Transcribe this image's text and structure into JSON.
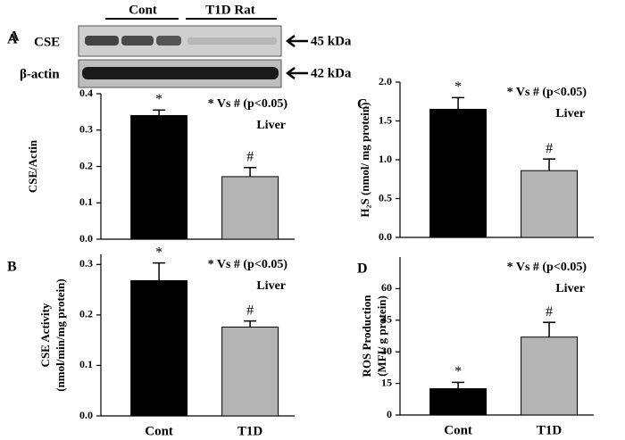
{
  "blot": {
    "panel": "A",
    "groups": [
      "Cont",
      "T1D Rat"
    ],
    "rows": [
      "CSE",
      "β-actin"
    ],
    "sizes": [
      "45 kDa",
      "42 kDa"
    ]
  },
  "chart_data": [
    {
      "type": "bar",
      "panel": "A",
      "ylabel": [
        "CSE/Actin"
      ],
      "categories": [
        null,
        null
      ],
      "values": [
        0.34,
        0.172
      ],
      "errors": [
        0.015,
        0.025
      ],
      "colors": [
        "#000000",
        "#b4b4b4"
      ],
      "markers": [
        "*",
        "#"
      ],
      "note": "* Vs # (p<0.05)",
      "tissue": "Liver",
      "ylim": [
        0,
        0.4
      ],
      "yticks": [
        {
          "value": 0,
          "label": "0.0"
        },
        0.1,
        0.2,
        0.3,
        0.4
      ]
    },
    {
      "type": "bar",
      "panel": "B",
      "ylabel": [
        "CSE Activity",
        "(nmol/min/mg protein)"
      ],
      "categories": [
        "Cont",
        "T1D"
      ],
      "values": [
        0.268,
        0.176
      ],
      "errors": [
        0.035,
        0.012
      ],
      "colors": [
        "#000000",
        "#b4b4b4"
      ],
      "markers": [
        "*",
        "#"
      ],
      "note": "* Vs # (p<0.05)",
      "tissue": "Liver",
      "ylim": [
        0,
        0.32
      ],
      "yticks": [
        {
          "value": 0,
          "label": "0.0"
        },
        0.1,
        0.2,
        0.3
      ]
    },
    {
      "type": "bar",
      "panel": "C",
      "ylabel": [
        "H₂S (nmol/ mg protein)"
      ],
      "categories": [
        null,
        null
      ],
      "values": [
        1.65,
        0.86
      ],
      "errors": [
        0.15,
        0.15
      ],
      "colors": [
        "#000000",
        "#b4b4b4"
      ],
      "markers": [
        "*",
        "#"
      ],
      "note": "* Vs # (p<0.05)",
      "tissue": "Liver",
      "ylim": [
        0,
        2.0
      ],
      "yticks": [
        {
          "value": 0,
          "label": "0.0"
        },
        0.5,
        {
          "value": 1,
          "label": "1.0"
        },
        1.5,
        {
          "value": 2,
          "label": "2.0"
        }
      ]
    },
    {
      "type": "bar",
      "panel": "D",
      "ylabel": [
        "ROS Production",
        "(MFI/ g protein)"
      ],
      "categories": [
        "Cont",
        "T1D"
      ],
      "values": [
        12.5,
        37
      ],
      "errors": [
        3,
        7
      ],
      "colors": [
        "#000000",
        "#b4b4b4"
      ],
      "markers": [
        "*",
        "#"
      ],
      "note": "* Vs # (p<0.05)",
      "tissue": "Liver",
      "ylim": [
        0,
        75
      ],
      "yticks": [
        0,
        15,
        30,
        45,
        60
      ]
    }
  ]
}
